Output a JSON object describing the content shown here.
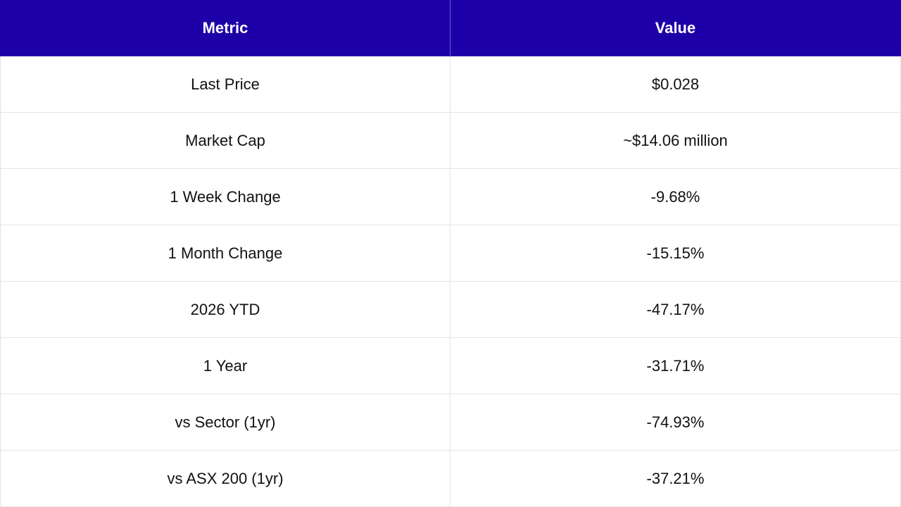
{
  "table": {
    "header_bg": "#1e00a8",
    "columns": [
      "Metric",
      "Value"
    ],
    "rows": [
      {
        "metric": "Last Price",
        "value": "$0.028"
      },
      {
        "metric": "Market Cap",
        "value": "~$14.06 million"
      },
      {
        "metric": "1 Week Change",
        "value": "-9.68%"
      },
      {
        "metric": "1 Month Change",
        "value": "-15.15%"
      },
      {
        "metric": "2026 YTD",
        "value": "-47.17%"
      },
      {
        "metric": "1 Year",
        "value": "-31.71%"
      },
      {
        "metric": "vs Sector (1yr)",
        "value": "-74.93%"
      },
      {
        "metric": "vs ASX 200 (1yr)",
        "value": "-37.21%"
      }
    ]
  }
}
